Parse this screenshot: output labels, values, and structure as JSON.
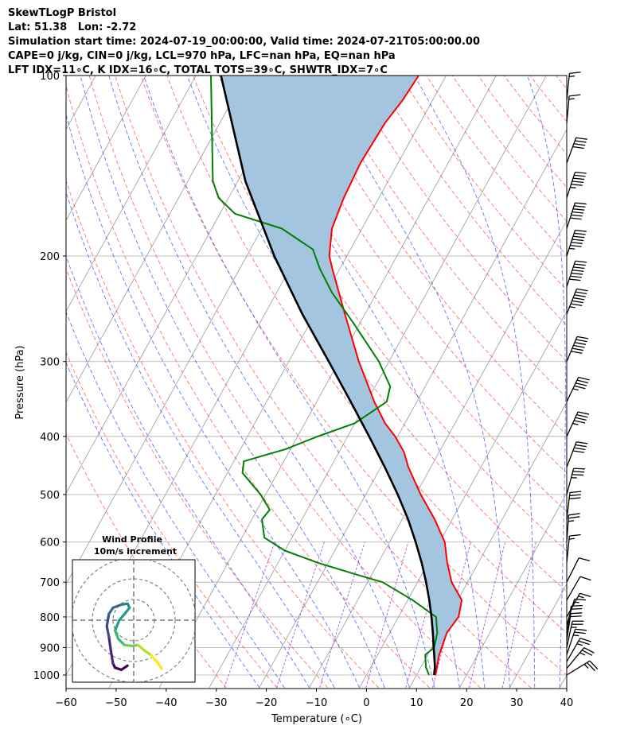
{
  "header": {
    "line1": "SkewTLogP Bristol",
    "line2": "Lat: 51.38   Lon: -2.72",
    "line3": "Simulation start time: 2024-07-19_00:00:00, Valid time: 2024-07-21T05:00:00.00",
    "line4": "CAPE=0 j/kg, CIN=0 j/kg, LCL=970 hPa, LFC=nan hPa, EQ=nan hPa",
    "line5": "LFT IDX=11∘C, K IDX=16∘C, TOTAL TOTS=39∘C, SHWTR_IDX=7∘C"
  },
  "chart_data": {
    "type": "skew-t",
    "xlabel": "Temperature (∘C)",
    "ylabel": "Pressure (hPa)",
    "xlim": [
      -60,
      40
    ],
    "plim": [
      1050,
      100
    ],
    "xticks": [
      -60,
      -50,
      -40,
      -30,
      -20,
      -10,
      0,
      10,
      20,
      30,
      40
    ],
    "pticks": [
      1000,
      900,
      800,
      700,
      600,
      500,
      400,
      300,
      200,
      100
    ],
    "temperature": {
      "name": "Temperature",
      "color": "#ff0000",
      "points": [
        [
          1000,
          13.8
        ],
        [
          970,
          13.2
        ],
        [
          925,
          12.3
        ],
        [
          850,
          11.4
        ],
        [
          800,
          12.0
        ],
        [
          750,
          10.8
        ],
        [
          700,
          6.8
        ],
        [
          650,
          3.8
        ],
        [
          600,
          1.0
        ],
        [
          550,
          -3.5
        ],
        [
          500,
          -9.0
        ],
        [
          450,
          -14.5
        ],
        [
          425,
          -17.0
        ],
        [
          400,
          -20.5
        ],
        [
          380,
          -24.0
        ],
        [
          350,
          -28.5
        ],
        [
          300,
          -36.0
        ],
        [
          250,
          -44.0
        ],
        [
          210,
          -51.5
        ],
        [
          200,
          -53.5
        ],
        [
          180,
          -56.0
        ],
        [
          160,
          -57.0
        ],
        [
          140,
          -57.5
        ],
        [
          120,
          -57.0
        ],
        [
          110,
          -56.0
        ],
        [
          100,
          -55.5
        ]
      ]
    },
    "dewpoint": {
      "name": "Dewpoint",
      "color": "#008000",
      "points": [
        [
          1000,
          12.5
        ],
        [
          970,
          11.0
        ],
        [
          925,
          9.5
        ],
        [
          900,
          10.5
        ],
        [
          850,
          9.5
        ],
        [
          800,
          7.5
        ],
        [
          750,
          1.0
        ],
        [
          700,
          -7.0
        ],
        [
          680,
          -13.0
        ],
        [
          650,
          -22.0
        ],
        [
          620,
          -30.0
        ],
        [
          590,
          -35.5
        ],
        [
          550,
          -38.0
        ],
        [
          530,
          -37.5
        ],
        [
          500,
          -41.0
        ],
        [
          460,
          -47.0
        ],
        [
          440,
          -48.0
        ],
        [
          420,
          -41.0
        ],
        [
          400,
          -36.0
        ],
        [
          380,
          -30.0
        ],
        [
          350,
          -26.0
        ],
        [
          330,
          -27.0
        ],
        [
          300,
          -32.0
        ],
        [
          260,
          -41.0
        ],
        [
          230,
          -49.0
        ],
        [
          210,
          -54.0
        ],
        [
          195,
          -57.5
        ],
        [
          180,
          -66.0
        ],
        [
          170,
          -77.0
        ],
        [
          160,
          -82.0
        ],
        [
          150,
          -85.0
        ],
        [
          100,
          -97.0
        ]
      ]
    },
    "parcel": {
      "name": "Parcel profile",
      "color": "#000000",
      "points": [
        [
          1000,
          13.5
        ],
        [
          970,
          12.8
        ],
        [
          925,
          11.3
        ],
        [
          900,
          10.4
        ],
        [
          850,
          8.6
        ],
        [
          800,
          6.6
        ],
        [
          750,
          4.3
        ],
        [
          700,
          1.7
        ],
        [
          650,
          -1.3
        ],
        [
          600,
          -4.8
        ],
        [
          550,
          -8.8
        ],
        [
          500,
          -13.6
        ],
        [
          450,
          -19.2
        ],
        [
          400,
          -25.7
        ],
        [
          350,
          -33.2
        ],
        [
          300,
          -42.0
        ],
        [
          250,
          -52.5
        ],
        [
          200,
          -64.5
        ],
        [
          150,
          -78.5
        ],
        [
          100,
          -95.0
        ]
      ]
    },
    "shading": {
      "name": "Parcel-environment area",
      "color": "#a3c5df"
    },
    "reference_lines": {
      "isotherms": "gray",
      "dry_adiabats": "red dashed",
      "moist_adiabats": "blue dashed",
      "mixing_ratio": "purple dashed"
    },
    "wind_barbs": [
      {
        "p": 1000,
        "u": -13,
        "v": -8
      },
      {
        "p": 975,
        "u": -10,
        "v": -12
      },
      {
        "p": 950,
        "u": -8,
        "v": -14
      },
      {
        "p": 925,
        "u": -5,
        "v": -15
      },
      {
        "p": 900,
        "u": -3,
        "v": -14
      },
      {
        "p": 875,
        "u": -2,
        "v": -13
      },
      {
        "p": 850,
        "u": -2,
        "v": -12
      },
      {
        "p": 825,
        "u": -3,
        "v": -10
      },
      {
        "p": 800,
        "u": -5,
        "v": -9
      },
      {
        "p": 750,
        "u": -4,
        "v": -7
      },
      {
        "p": 700,
        "u": -3,
        "v": -6
      },
      {
        "p": 650,
        "u": -1,
        "v": -10
      },
      {
        "p": 600,
        "u": -1,
        "v": -14
      },
      {
        "p": 550,
        "u": -2,
        "v": -17
      },
      {
        "p": 500,
        "u": -5,
        "v": -19
      },
      {
        "p": 450,
        "u": -8,
        "v": -21
      },
      {
        "p": 400,
        "u": -10,
        "v": -22
      },
      {
        "p": 350,
        "u": -11,
        "v": -23
      },
      {
        "p": 300,
        "u": -12,
        "v": -29
      },
      {
        "p": 250,
        "u": -13,
        "v": -33
      },
      {
        "p": 225,
        "u": -12,
        "v": -36
      },
      {
        "p": 200,
        "u": -11,
        "v": -34
      },
      {
        "p": 180,
        "u": -10,
        "v": -31
      },
      {
        "p": 160,
        "u": -9,
        "v": -28
      },
      {
        "p": 140,
        "u": -8,
        "v": -22
      },
      {
        "p": 120,
        "u": -1,
        "v": -11
      },
      {
        "p": 110,
        "u": -1,
        "v": -10
      }
    ],
    "hodograph": {
      "title": "Wind Profile",
      "subtitle": "10m/s increment",
      "rings": [
        10,
        20,
        30
      ],
      "path": [
        [
          -0.3,
          -2.2
        ],
        [
          -0.6,
          -2.4
        ],
        [
          -0.9,
          -2.3
        ],
        [
          -1.0,
          -2.1
        ],
        [
          -1.1,
          -1.5
        ],
        [
          -1.2,
          -0.8
        ],
        [
          -1.3,
          -0.3
        ],
        [
          -1.2,
          0.3
        ],
        [
          -1.0,
          0.6
        ],
        [
          -0.6,
          0.75
        ],
        [
          -0.3,
          0.8
        ],
        [
          -0.2,
          0.6
        ],
        [
          -0.4,
          0.35
        ],
        [
          -0.7,
          0.0
        ],
        [
          -0.9,
          -0.5
        ],
        [
          -0.75,
          -0.9
        ],
        [
          -0.45,
          -1.2
        ],
        [
          -0.05,
          -1.25
        ],
        [
          0.2,
          -1.2
        ],
        [
          0.5,
          -1.45
        ],
        [
          0.85,
          -1.7
        ],
        [
          1.15,
          -2.05
        ],
        [
          1.35,
          -2.35
        ]
      ]
    }
  }
}
